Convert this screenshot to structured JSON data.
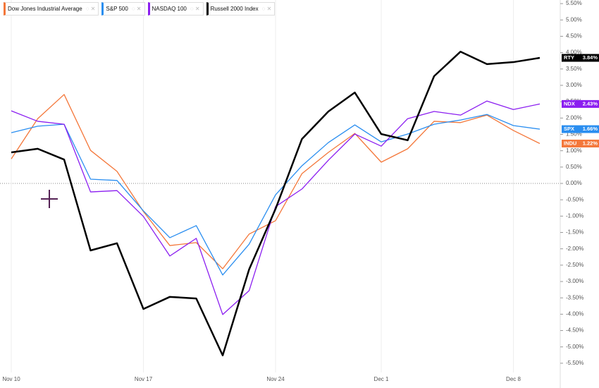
{
  "chart_data": {
    "type": "line",
    "categories": [
      "Nov 10",
      null,
      null,
      null,
      null,
      "Nov 17",
      null,
      null,
      null,
      null,
      "Nov 24",
      null,
      null,
      null,
      "Dec 1",
      null,
      null,
      null,
      null,
      "Dec 8",
      null
    ],
    "series": [
      {
        "name": "Dow Jones Industrial Average",
        "symbol": "INDU",
        "last_value_label": "1.22%",
        "color": "#f4773a",
        "values": [
          0.75,
          1.98,
          2.72,
          1.01,
          0.37,
          -0.86,
          -1.9,
          -1.81,
          -2.61,
          -1.55,
          -1.14,
          0.3,
          0.95,
          1.53,
          0.65,
          1.06,
          1.9,
          1.86,
          2.09,
          1.62,
          1.22
        ]
      },
      {
        "name": "S&P 500",
        "symbol": "SPX",
        "last_value_label": "1.66%",
        "color": "#2a8ef0",
        "values": [
          1.55,
          1.75,
          1.81,
          0.13,
          0.09,
          -0.84,
          -1.66,
          -1.29,
          -2.8,
          -1.86,
          -0.35,
          0.54,
          1.25,
          1.79,
          1.27,
          1.51,
          1.81,
          1.94,
          2.11,
          1.77,
          1.66
        ]
      },
      {
        "name": "NASDAQ 100",
        "symbol": "NDX",
        "last_value_label": "2.43%",
        "color": "#8b1ef0",
        "values": [
          2.22,
          1.9,
          1.81,
          -0.26,
          -0.22,
          -1.01,
          -2.22,
          -1.68,
          -4.01,
          -3.28,
          -0.71,
          -0.17,
          0.71,
          1.51,
          1.14,
          1.98,
          2.2,
          2.09,
          2.52,
          2.26,
          2.43
        ]
      },
      {
        "name": "Russell 2000 Index",
        "symbol": "RTY",
        "last_value_label": "3.84%",
        "color": "#000000",
        "values": [
          0.95,
          1.06,
          0.73,
          -2.05,
          -1.83,
          -3.84,
          -3.47,
          -3.52,
          -5.26,
          -2.63,
          -0.78,
          1.36,
          2.2,
          2.78,
          1.51,
          1.32,
          3.28,
          4.03,
          3.65,
          3.71,
          3.84
        ]
      }
    ],
    "ylim": [
      -5.61,
      5.61
    ],
    "yticks": [
      {
        "value": 5.5,
        "label": "5.50%"
      },
      {
        "value": 5.0,
        "label": "5.00%"
      },
      {
        "value": 4.5,
        "label": "4.50%"
      },
      {
        "value": 4.0,
        "label": "4.00%"
      },
      {
        "value": 3.5,
        "label": "3.50%"
      },
      {
        "value": 3.0,
        "label": "3.00%"
      },
      {
        "value": 2.5,
        "label": "2.50%"
      },
      {
        "value": 2.0,
        "label": "2.00%"
      },
      {
        "value": 1.5,
        "label": "1.50%"
      },
      {
        "value": 1.0,
        "label": "1.00%"
      },
      {
        "value": 0.5,
        "label": "0.50%"
      },
      {
        "value": 0,
        "label": "0.00%"
      },
      {
        "value": -0.5,
        "label": "-0.50%"
      },
      {
        "value": -1.0,
        "label": "-1.00%"
      },
      {
        "value": -1.5,
        "label": "-1.50%"
      },
      {
        "value": -2.0,
        "label": "-2.00%"
      },
      {
        "value": -2.5,
        "label": "-2.50%"
      },
      {
        "value": -3.0,
        "label": "-3.00%"
      },
      {
        "value": -3.5,
        "label": "-3.50%"
      },
      {
        "value": -4.0,
        "label": "-4.00%"
      },
      {
        "value": -4.5,
        "label": "-4.50%"
      },
      {
        "value": -5.0,
        "label": "-5.00%"
      },
      {
        "value": -5.5,
        "label": "-5.50%"
      }
    ],
    "grid": true
  }
}
